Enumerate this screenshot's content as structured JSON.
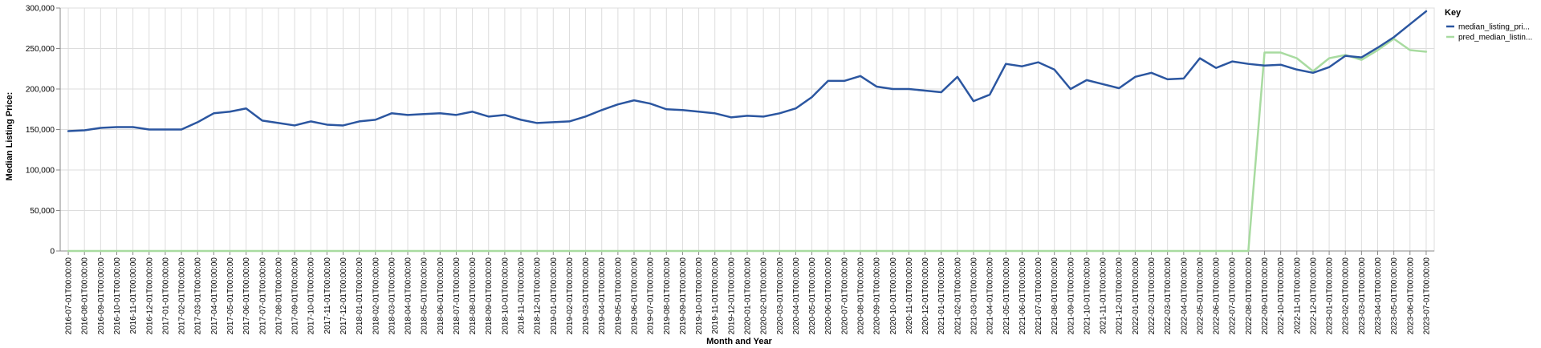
{
  "chart_data": {
    "type": "line",
    "xlabel": "Month and Year",
    "ylabel": "Median Listing Price:",
    "ylim": [
      0,
      300000
    ],
    "yticks": [
      0,
      50000,
      100000,
      150000,
      200000,
      250000,
      300000
    ],
    "ytick_labels": [
      "0",
      "50,000",
      "100,000",
      "150,000",
      "200,000",
      "250,000",
      "300,000"
    ],
    "grid": true,
    "legend": {
      "title": "Key",
      "placement": "top-right",
      "entries": [
        "median_listing_pri...",
        "pred_median_listin..."
      ]
    },
    "x": [
      "2016-07-01T00:00:00",
      "2016-08-01T00:00:00",
      "2016-09-01T00:00:00",
      "2016-10-01T00:00:00",
      "2016-11-01T00:00:00",
      "2016-12-01T00:00:00",
      "2017-01-01T00:00:00",
      "2017-02-01T00:00:00",
      "2017-03-01T00:00:00",
      "2017-04-01T00:00:00",
      "2017-05-01T00:00:00",
      "2017-06-01T00:00:00",
      "2017-07-01T00:00:00",
      "2017-08-01T00:00:00",
      "2017-09-01T00:00:00",
      "2017-10-01T00:00:00",
      "2017-11-01T00:00:00",
      "2017-12-01T00:00:00",
      "2018-01-01T00:00:00",
      "2018-02-01T00:00:00",
      "2018-03-01T00:00:00",
      "2018-04-01T00:00:00",
      "2018-05-01T00:00:00",
      "2018-06-01T00:00:00",
      "2018-07-01T00:00:00",
      "2018-08-01T00:00:00",
      "2018-09-01T00:00:00",
      "2018-10-01T00:00:00",
      "2018-11-01T00:00:00",
      "2018-12-01T00:00:00",
      "2019-01-01T00:00:00",
      "2019-02-01T00:00:00",
      "2019-03-01T00:00:00",
      "2019-04-01T00:00:00",
      "2019-05-01T00:00:00",
      "2019-06-01T00:00:00",
      "2019-07-01T00:00:00",
      "2019-08-01T00:00:00",
      "2019-09-01T00:00:00",
      "2019-10-01T00:00:00",
      "2019-11-01T00:00:00",
      "2019-12-01T00:00:00",
      "2020-01-01T00:00:00",
      "2020-02-01T00:00:00",
      "2020-03-01T00:00:00",
      "2020-04-01T00:00:00",
      "2020-05-01T00:00:00",
      "2020-06-01T00:00:00",
      "2020-07-01T00:00:00",
      "2020-08-01T00:00:00",
      "2020-09-01T00:00:00",
      "2020-10-01T00:00:00",
      "2020-11-01T00:00:00",
      "2020-12-01T00:00:00",
      "2021-01-01T00:00:00",
      "2021-02-01T00:00:00",
      "2021-03-01T00:00:00",
      "2021-04-01T00:00:00",
      "2021-05-01T00:00:00",
      "2021-06-01T00:00:00",
      "2021-07-01T00:00:00",
      "2021-08-01T00:00:00",
      "2021-09-01T00:00:00",
      "2021-10-01T00:00:00",
      "2021-11-01T00:00:00",
      "2021-12-01T00:00:00",
      "2022-01-01T00:00:00",
      "2022-02-01T00:00:00",
      "2022-03-01T00:00:00",
      "2022-04-01T00:00:00",
      "2022-05-01T00:00:00",
      "2022-06-01T00:00:00",
      "2022-07-01T00:00:00",
      "2022-08-01T00:00:00",
      "2022-09-01T00:00:00",
      "2022-10-01T00:00:00",
      "2022-11-01T00:00:00",
      "2022-12-01T00:00:00",
      "2023-01-01T00:00:00",
      "2023-02-01T00:00:00",
      "2023-03-01T00:00:00",
      "2023-04-01T00:00:00",
      "2023-05-01T00:00:00",
      "2023-06-01T00:00:00",
      "2023-07-01T00:00:00"
    ],
    "series": [
      {
        "name": "median_listing_pri...",
        "color": "#2b56a0",
        "values": [
          148000,
          149000,
          152000,
          153000,
          153000,
          150000,
          150000,
          150000,
          159000,
          170000,
          172000,
          176000,
          161000,
          158000,
          155000,
          160000,
          156000,
          155000,
          160000,
          162000,
          170000,
          168000,
          169000,
          170000,
          168000,
          172000,
          166000,
          168000,
          162000,
          158000,
          159000,
          160000,
          166000,
          174000,
          181000,
          186000,
          182000,
          175000,
          174000,
          172000,
          170000,
          165000,
          167000,
          166000,
          170000,
          176000,
          190000,
          210000,
          210000,
          216000,
          203000,
          200000,
          200000,
          198000,
          196000,
          215000,
          185000,
          193000,
          231000,
          228000,
          233000,
          224000,
          200000,
          211000,
          206000,
          201000,
          215000,
          220000,
          212000,
          213000,
          238000,
          226000,
          234000,
          231000,
          229000,
          230000,
          224000,
          220000,
          227000,
          241000,
          239000,
          251000,
          264000,
          280000,
          296000
        ]
      },
      {
        "name": "pred_median_listin...",
        "color": "#a8dba0",
        "values": [
          0,
          0,
          0,
          0,
          0,
          0,
          0,
          0,
          0,
          0,
          0,
          0,
          0,
          0,
          0,
          0,
          0,
          0,
          0,
          0,
          0,
          0,
          0,
          0,
          0,
          0,
          0,
          0,
          0,
          0,
          0,
          0,
          0,
          0,
          0,
          0,
          0,
          0,
          0,
          0,
          0,
          0,
          0,
          0,
          0,
          0,
          0,
          0,
          0,
          0,
          0,
          0,
          0,
          0,
          0,
          0,
          0,
          0,
          0,
          0,
          0,
          0,
          0,
          0,
          0,
          0,
          0,
          0,
          0,
          0,
          0,
          0,
          0,
          0,
          245000,
          245000,
          238000,
          222000,
          238000,
          242000,
          236000,
          248000,
          262000,
          248000,
          246000
        ]
      }
    ]
  }
}
